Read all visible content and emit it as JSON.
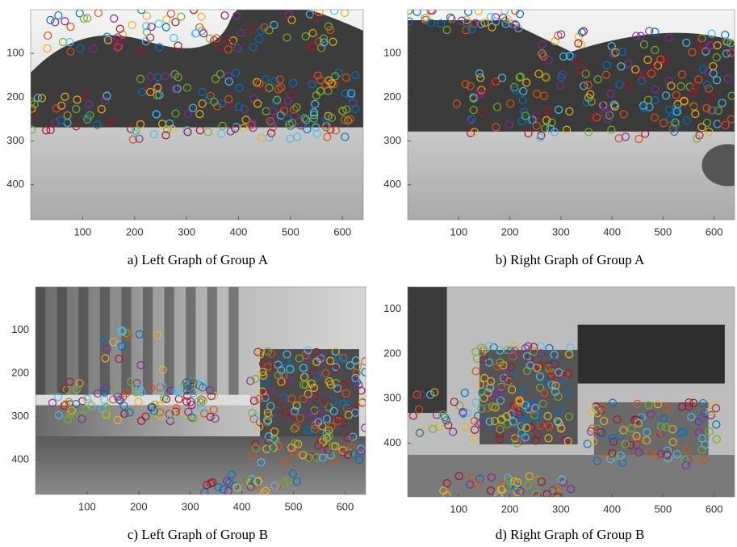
{
  "panels": [
    {
      "caption": "a) Left Graph of Group A",
      "xlim": [
        0,
        640
      ],
      "ylim": [
        0,
        480
      ],
      "xticks": [
        100,
        200,
        300,
        400,
        500,
        600
      ],
      "yticks": [
        100,
        200,
        300,
        400
      ]
    },
    {
      "caption": "b) Right Graph of Group A",
      "xlim": [
        0,
        640
      ],
      "ylim": [
        0,
        480
      ],
      "xticks": [
        100,
        200,
        300,
        400,
        500,
        600
      ],
      "yticks": [
        100,
        200,
        300,
        400
      ]
    },
    {
      "caption": "c) Left Graph of Group B",
      "xlim": [
        0,
        640
      ],
      "ylim": [
        0,
        480
      ],
      "xticks": [
        100,
        200,
        300,
        400,
        500,
        600
      ],
      "yticks": [
        100,
        200,
        300,
        400
      ]
    },
    {
      "caption": "d) Right Graph of Group B",
      "xlim": [
        0,
        640
      ],
      "ylim": [
        50,
        520
      ],
      "xticks": [
        100,
        200,
        300,
        400,
        500,
        600
      ],
      "yticks": [
        100,
        200,
        300,
        400
      ]
    }
  ]
}
